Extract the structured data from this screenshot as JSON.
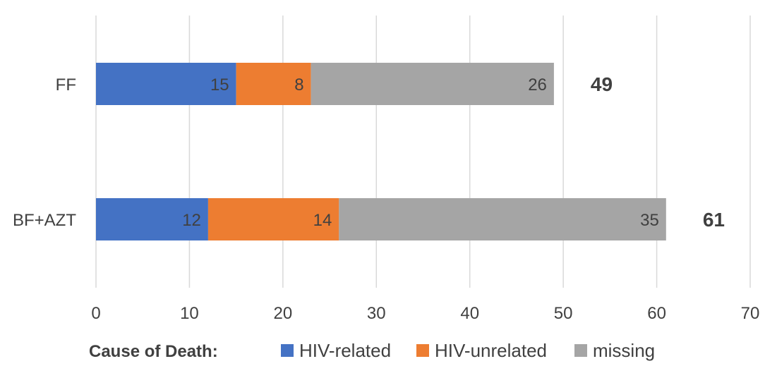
{
  "chart_data": {
    "type": "bar",
    "orientation": "horizontal",
    "stacked": true,
    "categories": [
      "FF",
      "BF+AZT"
    ],
    "series": [
      {
        "name": "HIV-related",
        "values": [
          15,
          12
        ],
        "color": "#4472C4"
      },
      {
        "name": "HIV-unrelated",
        "values": [
          8,
          14
        ],
        "color": "#ED7D31"
      },
      {
        "name": "missing",
        "values": [
          26,
          35
        ],
        "color": "#A5A5A5"
      }
    ],
    "totals": [
      "49",
      "61"
    ],
    "xlim": [
      0,
      70
    ],
    "xticks": [
      "0",
      "10",
      "20",
      "30",
      "40",
      "50",
      "60",
      "70"
    ],
    "grid": true,
    "legend": {
      "title": "Cause of Death:",
      "placement": "bottom"
    }
  }
}
